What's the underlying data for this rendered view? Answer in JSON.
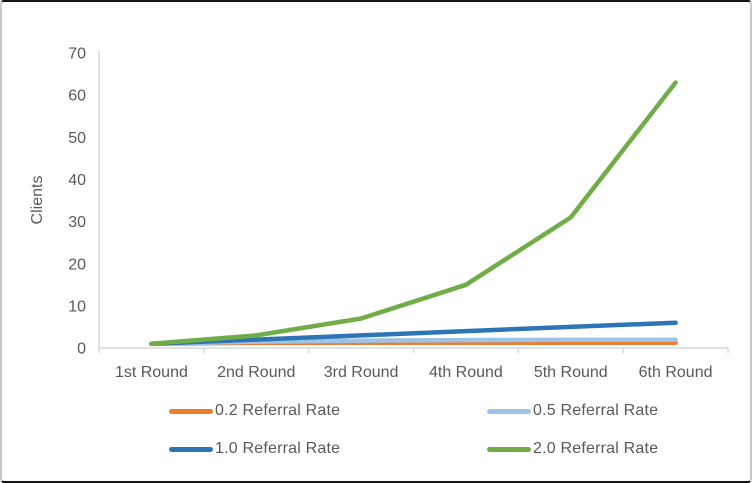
{
  "chart_data": {
    "type": "line",
    "title": "",
    "xlabel": "",
    "ylabel": "Clients",
    "categories": [
      "1st Round",
      "2nd Round",
      "3rd Round",
      "4th Round",
      "5th Round",
      "6th Round"
    ],
    "y_ticks": [
      0,
      10,
      20,
      30,
      40,
      50,
      60,
      70
    ],
    "ylim": [
      0,
      70
    ],
    "grid": false,
    "legend_position": "bottom",
    "series": [
      {
        "name": "0.2 Referral Rate",
        "color": "#ED7D31",
        "values": [
          1,
          1.2,
          1.24,
          1.25,
          1.25,
          1.25
        ]
      },
      {
        "name": "0.5 Referral Rate",
        "color": "#9DC3E6",
        "values": [
          1,
          1.5,
          1.75,
          1.88,
          1.94,
          1.97
        ]
      },
      {
        "name": "1.0 Referral Rate",
        "color": "#2E75B6",
        "values": [
          1,
          2,
          3,
          4,
          5,
          6
        ]
      },
      {
        "name": "2.0 Referral Rate",
        "color": "#70AD47",
        "values": [
          1,
          3,
          7,
          15,
          31,
          63
        ]
      }
    ],
    "colors": {
      "axis_line": "#D9D9D9",
      "text": "#595959",
      "background": "#FFFFFF"
    }
  }
}
